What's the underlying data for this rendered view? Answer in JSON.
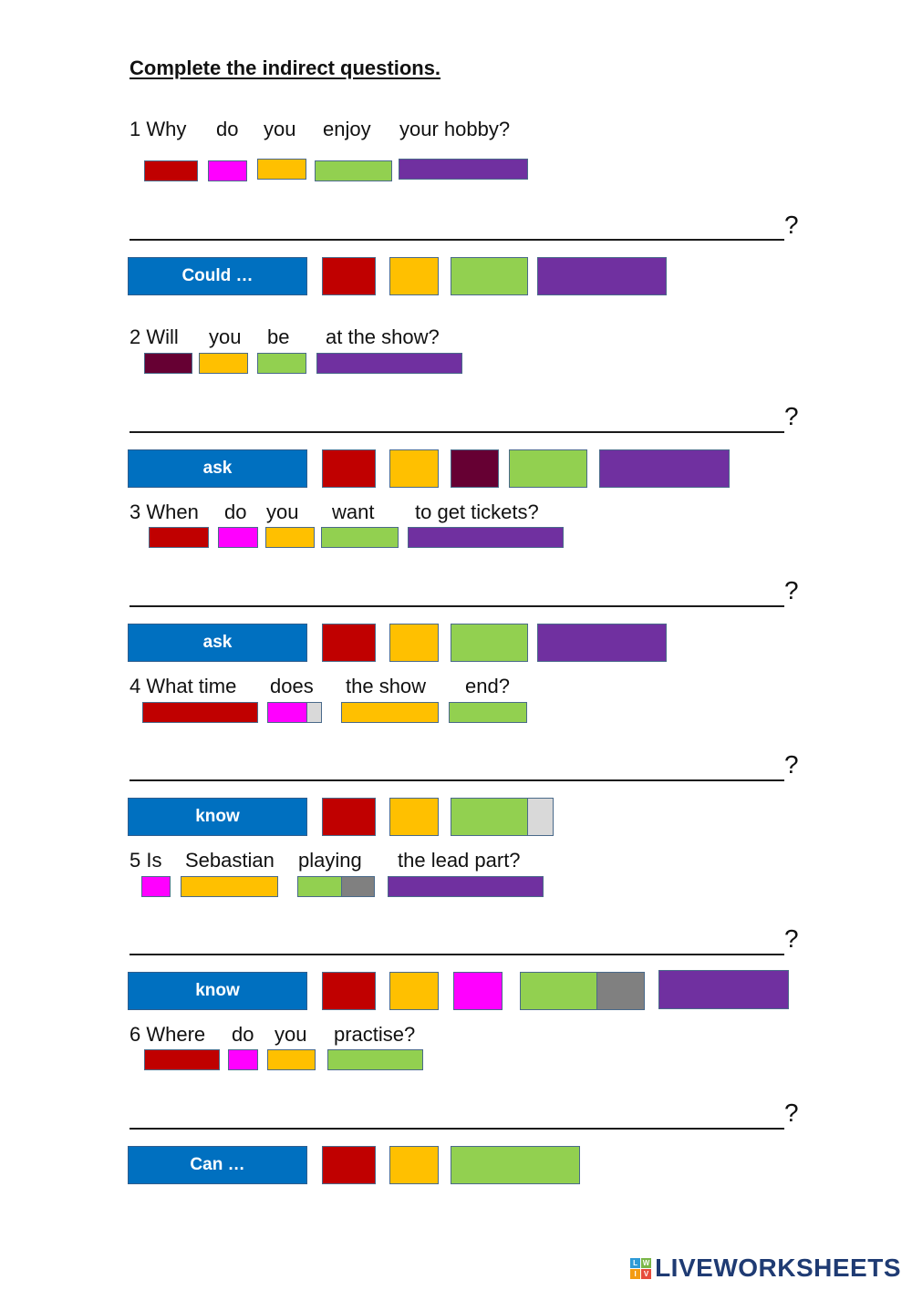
{
  "title": "Complete the indirect questions.",
  "colors": {
    "red": "#c00000",
    "magenta": "#ff00ff",
    "yellow": "#ffc000",
    "green": "#92d050",
    "purple": "#7030a0",
    "maroon": "#660033",
    "gray": "#808080",
    "lightgray": "#d9d9d9",
    "blue": "#0070c0"
  },
  "questions": [
    {
      "number_text": "1 Why",
      "words": [
        "do",
        "you",
        "enjoy",
        "your hobby?"
      ],
      "question_mark": "?",
      "starter": "Could …"
    },
    {
      "number_text": "2 Will",
      "words": [
        "you",
        "be",
        "at the show?"
      ],
      "question_mark": "?",
      "starter": "ask"
    },
    {
      "number_text": "3 When",
      "words": [
        "do",
        "you",
        "want",
        "to get tickets?"
      ],
      "question_mark": "?",
      "starter": "ask"
    },
    {
      "number_text": "4 What time",
      "words": [
        "does",
        "the show",
        "end?"
      ],
      "question_mark": "?",
      "starter": "know"
    },
    {
      "number_text": "5 Is",
      "words": [
        "Sebastian",
        "playing",
        "the lead part?"
      ],
      "question_mark": "?",
      "starter": "know"
    },
    {
      "number_text": "6 Where",
      "words": [
        "do",
        "you",
        "practise?"
      ],
      "question_mark": "?",
      "starter": "Can …"
    }
  ],
  "logo": {
    "text": "LIVEWORKSHEETS",
    "icon_letters": [
      "L",
      "W",
      "I",
      "V"
    ]
  }
}
